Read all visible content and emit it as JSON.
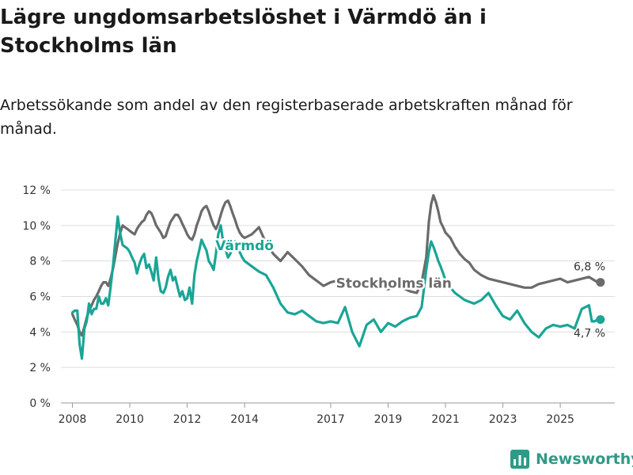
{
  "header": {
    "title": "Lägre ungdomsarbetslöshet i Värmdö än i Stockholms län",
    "subtitle": "Arbetssökande som andel av den registerbaserade arbetskraften månad för månad."
  },
  "brand": {
    "name": "Newsworthy"
  },
  "chart_data": {
    "type": "line",
    "title": "Lägre ungdomsarbetslöshet i Värmdö än i Stockholms län",
    "subtitle": "Arbetssökande som andel av den registerbaserade arbetskraften månad för månad.",
    "xlabel": "",
    "ylabel": "",
    "ylim": [
      0,
      12
    ],
    "xlim": [
      2007.6,
      2026.9
    ],
    "grid": true,
    "y_ticks": [
      0,
      2,
      4,
      6,
      8,
      10,
      12
    ],
    "y_tick_labels": [
      "0 %",
      "2 %",
      "4 %",
      "6 %",
      "8 %",
      "10 %",
      "12 %"
    ],
    "x_ticks": [
      2008,
      2010,
      2012,
      2014,
      2017,
      2019,
      2021,
      2023,
      2025
    ],
    "x_tick_labels": [
      "2008",
      "2010",
      "2012",
      "2014",
      "2017",
      "2019",
      "2021",
      "2023",
      "2025"
    ],
    "series": [
      {
        "name": "Stockholms län",
        "color": "#6b6b6b",
        "end_label": "6,8 %",
        "x": [
          2008.0,
          2008.08,
          2008.17,
          2008.25,
          2008.33,
          2008.42,
          2008.5,
          2008.58,
          2008.67,
          2008.75,
          2008.83,
          2008.92,
          2009.0,
          2009.08,
          2009.17,
          2009.25,
          2009.33,
          2009.42,
          2009.5,
          2009.58,
          2009.67,
          2009.75,
          2009.83,
          2009.92,
          2010.0,
          2010.08,
          2010.17,
          2010.25,
          2010.33,
          2010.42,
          2010.5,
          2010.58,
          2010.67,
          2010.75,
          2010.83,
          2010.92,
          2011.0,
          2011.08,
          2011.17,
          2011.25,
          2011.33,
          2011.42,
          2011.5,
          2011.58,
          2011.67,
          2011.75,
          2011.83,
          2011.92,
          2012.0,
          2012.08,
          2012.17,
          2012.25,
          2012.33,
          2012.42,
          2012.5,
          2012.58,
          2012.67,
          2012.75,
          2012.83,
          2012.92,
          2013.0,
          2013.08,
          2013.17,
          2013.25,
          2013.33,
          2013.42,
          2013.5,
          2013.58,
          2013.67,
          2013.75,
          2013.83,
          2013.92,
          2014.0,
          2014.25,
          2014.5,
          2014.75,
          2015.0,
          2015.25,
          2015.5,
          2015.75,
          2016.0,
          2016.25,
          2016.5,
          2016.75,
          2017.0,
          2017.25,
          2017.5,
          2017.75,
          2018.0,
          2018.25,
          2018.5,
          2018.75,
          2019.0,
          2019.25,
          2019.5,
          2019.75,
          2020.0,
          2020.17,
          2020.33,
          2020.42,
          2020.5,
          2020.58,
          2020.67,
          2020.75,
          2020.83,
          2020.92,
          2021.0,
          2021.17,
          2021.33,
          2021.5,
          2021.67,
          2021.83,
          2022.0,
          2022.25,
          2022.5,
          2022.75,
          2023.0,
          2023.25,
          2023.5,
          2023.75,
          2024.0,
          2024.25,
          2024.5,
          2024.75,
          2025.0,
          2025.25,
          2025.5,
          2025.75,
          2026.0,
          2026.1,
          2026.2,
          2026.3,
          2026.4
        ],
        "values": [
          5.0,
          4.7,
          4.4,
          4.0,
          3.8,
          4.3,
          4.8,
          5.2,
          5.5,
          5.8,
          6.0,
          6.3,
          6.6,
          6.8,
          6.8,
          6.6,
          7.0,
          7.6,
          8.3,
          9.0,
          9.6,
          10.0,
          9.9,
          9.8,
          9.7,
          9.6,
          9.5,
          9.8,
          10.0,
          10.2,
          10.3,
          10.6,
          10.8,
          10.7,
          10.4,
          10.0,
          9.8,
          9.6,
          9.3,
          9.4,
          9.8,
          10.2,
          10.4,
          10.6,
          10.6,
          10.4,
          10.1,
          9.8,
          9.5,
          9.3,
          9.2,
          9.5,
          10.0,
          10.4,
          10.8,
          11.0,
          11.1,
          10.8,
          10.4,
          10.0,
          9.8,
          10.1,
          10.6,
          11.0,
          11.3,
          11.4,
          11.1,
          10.7,
          10.3,
          9.9,
          9.6,
          9.4,
          9.3,
          9.5,
          9.9,
          9.0,
          8.4,
          8.0,
          8.5,
          8.1,
          7.7,
          7.2,
          6.9,
          6.6,
          6.8,
          6.9,
          7.0,
          6.7,
          6.6,
          6.8,
          6.9,
          6.6,
          6.4,
          6.6,
          6.5,
          6.3,
          6.2,
          6.8,
          8.2,
          10.2,
          11.2,
          11.7,
          11.3,
          10.8,
          10.2,
          9.9,
          9.6,
          9.3,
          8.8,
          8.4,
          8.1,
          7.9,
          7.5,
          7.2,
          7.0,
          6.9,
          6.8,
          6.7,
          6.6,
          6.5,
          6.5,
          6.7,
          6.8,
          6.9,
          7.0,
          6.8,
          6.9,
          7.0,
          7.1,
          7.0,
          6.9,
          6.8,
          6.8
        ]
      },
      {
        "name": "Värmdö",
        "color": "#1aa596",
        "end_label": "4,7 %",
        "x": [
          2008.0,
          2008.08,
          2008.17,
          2008.25,
          2008.33,
          2008.42,
          2008.5,
          2008.58,
          2008.67,
          2008.75,
          2008.83,
          2008.92,
          2009.0,
          2009.08,
          2009.17,
          2009.25,
          2009.33,
          2009.42,
          2009.5,
          2009.58,
          2009.67,
          2009.75,
          2009.83,
          2009.92,
          2010.0,
          2010.08,
          2010.17,
          2010.25,
          2010.33,
          2010.42,
          2010.5,
          2010.58,
          2010.67,
          2010.75,
          2010.83,
          2010.92,
          2011.0,
          2011.08,
          2011.17,
          2011.25,
          2011.33,
          2011.42,
          2011.5,
          2011.58,
          2011.67,
          2011.75,
          2011.83,
          2011.92,
          2012.0,
          2012.08,
          2012.17,
          2012.25,
          2012.33,
          2012.42,
          2012.5,
          2012.58,
          2012.67,
          2012.75,
          2012.83,
          2012.92,
          2013.0,
          2013.08,
          2013.17,
          2013.25,
          2013.33,
          2013.42,
          2013.5,
          2013.58,
          2013.67,
          2013.75,
          2013.83,
          2013.92,
          2014.0,
          2014.25,
          2014.5,
          2014.75,
          2015.0,
          2015.25,
          2015.5,
          2015.75,
          2016.0,
          2016.25,
          2016.5,
          2016.75,
          2017.0,
          2017.25,
          2017.5,
          2017.75,
          2018.0,
          2018.25,
          2018.5,
          2018.75,
          2019.0,
          2019.25,
          2019.5,
          2019.75,
          2020.0,
          2020.17,
          2020.33,
          2020.42,
          2020.5,
          2020.58,
          2020.67,
          2020.75,
          2020.83,
          2020.92,
          2021.0,
          2021.17,
          2021.33,
          2021.5,
          2021.67,
          2021.83,
          2022.0,
          2022.25,
          2022.5,
          2022.75,
          2023.0,
          2023.25,
          2023.5,
          2023.75,
          2024.0,
          2024.25,
          2024.5,
          2024.75,
          2025.0,
          2025.25,
          2025.5,
          2025.75,
          2026.0,
          2026.1,
          2026.2,
          2026.3,
          2026.4
        ],
        "values": [
          5.1,
          5.2,
          5.2,
          3.3,
          2.5,
          4.2,
          4.6,
          5.6,
          5.0,
          5.3,
          5.3,
          6.0,
          5.6,
          5.6,
          5.9,
          5.5,
          6.5,
          7.8,
          9.2,
          10.5,
          9.5,
          8.9,
          8.8,
          8.7,
          8.5,
          8.2,
          7.9,
          7.3,
          7.8,
          8.2,
          8.4,
          7.6,
          7.8,
          7.4,
          6.9,
          8.2,
          7.0,
          6.3,
          6.2,
          6.5,
          7.1,
          7.5,
          6.9,
          7.1,
          6.5,
          6.0,
          6.3,
          5.8,
          5.9,
          6.5,
          5.6,
          7.2,
          8.0,
          8.6,
          9.2,
          8.9,
          8.6,
          8.0,
          7.8,
          7.5,
          8.4,
          9.5,
          10.0,
          9.1,
          8.7,
          8.2,
          8.4,
          8.9,
          9.1,
          8.8,
          8.5,
          8.2,
          8.0,
          7.7,
          7.4,
          7.2,
          6.5,
          5.6,
          5.1,
          5.0,
          5.2,
          4.9,
          4.6,
          4.5,
          4.6,
          4.5,
          5.4,
          4.0,
          3.2,
          4.4,
          4.7,
          4.0,
          4.5,
          4.3,
          4.6,
          4.8,
          4.9,
          5.4,
          7.5,
          8.5,
          9.1,
          8.8,
          8.4,
          8.0,
          7.7,
          7.3,
          6.9,
          6.5,
          6.2,
          6.0,
          5.8,
          5.7,
          5.6,
          5.8,
          6.2,
          5.5,
          4.9,
          4.7,
          5.2,
          4.5,
          4.0,
          3.7,
          4.2,
          4.4,
          4.3,
          4.4,
          4.2,
          5.3,
          5.5,
          4.6,
          4.6,
          4.7,
          4.7
        ]
      }
    ],
    "annotations": [
      "Värmdö",
      "Stockholms län"
    ]
  }
}
